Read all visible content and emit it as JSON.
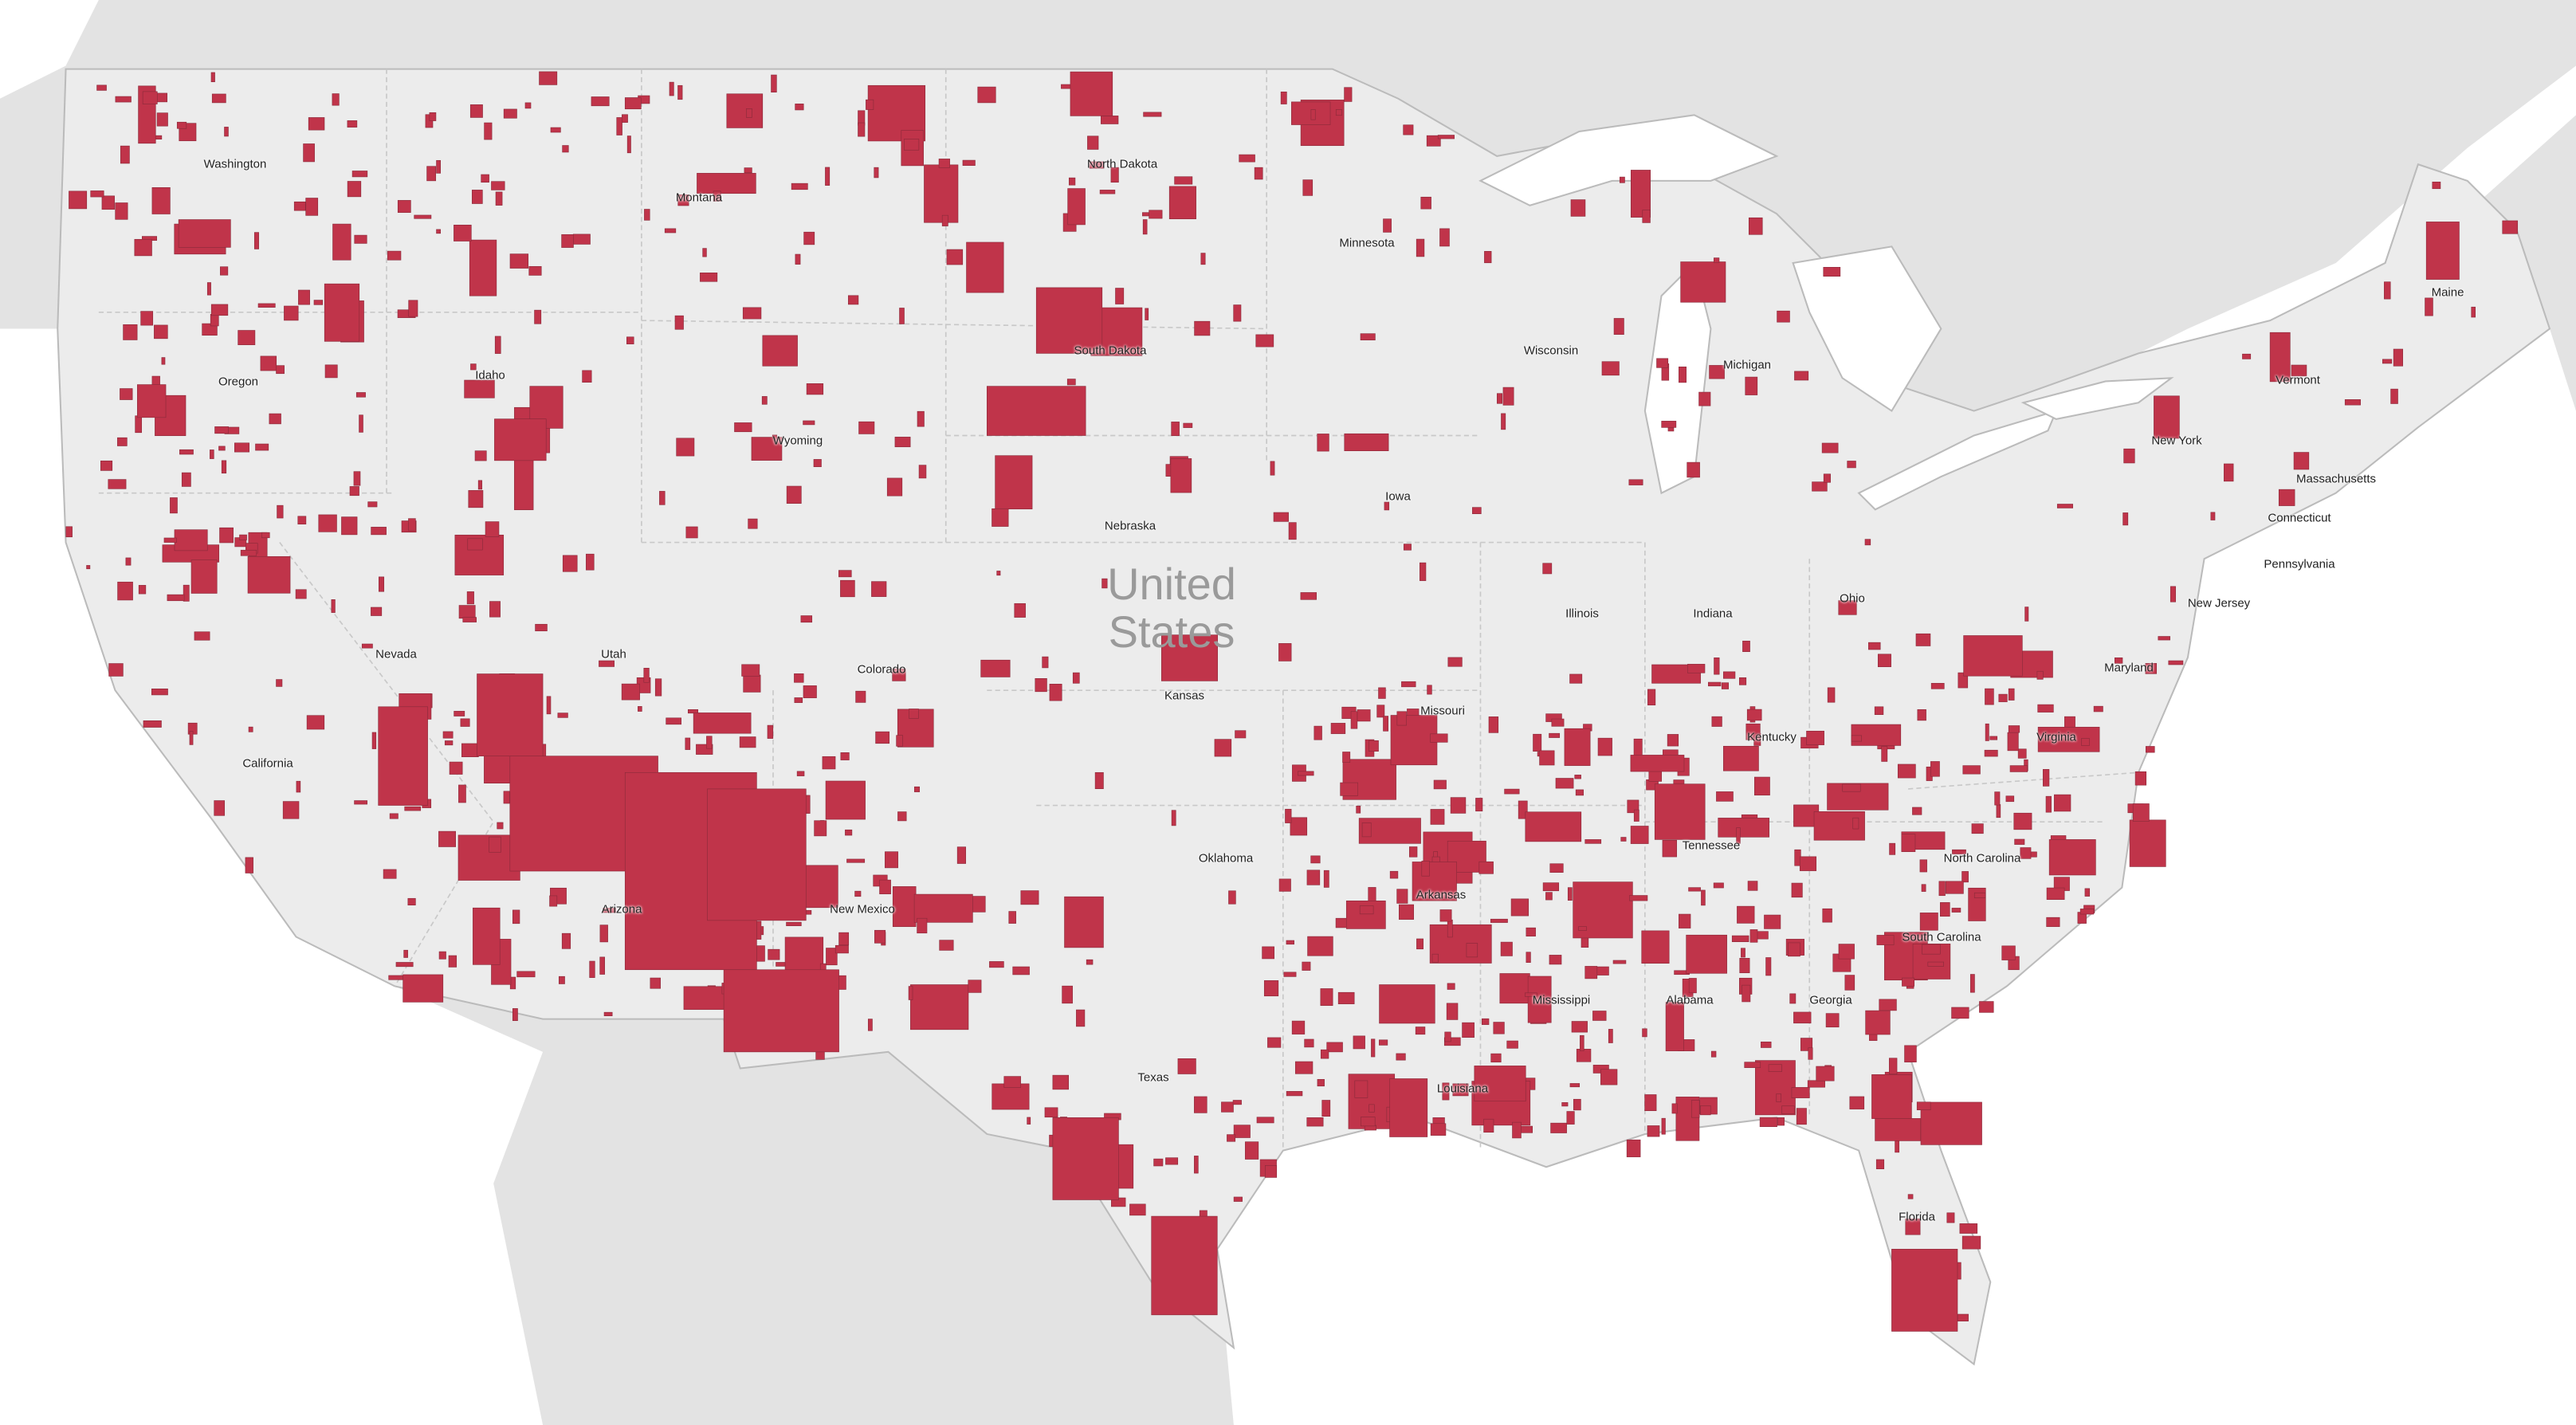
{
  "map": {
    "country_label_line1": "United",
    "country_label_line2": "States",
    "highlight_color": "#c0344a",
    "land_color": "#ececec",
    "neighbor_land_color": "#e3e3e3",
    "water_color": "#ffffff",
    "states": [
      "Washington",
      "Montana",
      "North Dakota",
      "Minnesota",
      "Oregon",
      "Idaho",
      "South Dakota",
      "Wisconsin",
      "Michigan",
      "Wyoming",
      "Nebraska",
      "Iowa",
      "Nevada",
      "Utah",
      "Colorado",
      "Kansas",
      "Illinois",
      "Indiana",
      "Ohio",
      "Pennsylvania",
      "New York",
      "Vermont",
      "Maine",
      "Massachusetts",
      "Connecticut",
      "New Jersey",
      "Maryland",
      "Virginia",
      "Kentucky",
      "Missouri",
      "California",
      "Oklahoma",
      "Arkansas",
      "Tennessee",
      "North Carolina",
      "South Carolina",
      "Arizona",
      "New Mexico",
      "Texas",
      "Mississippi",
      "Alabama",
      "Georgia",
      "Louisiana",
      "Florida"
    ]
  }
}
